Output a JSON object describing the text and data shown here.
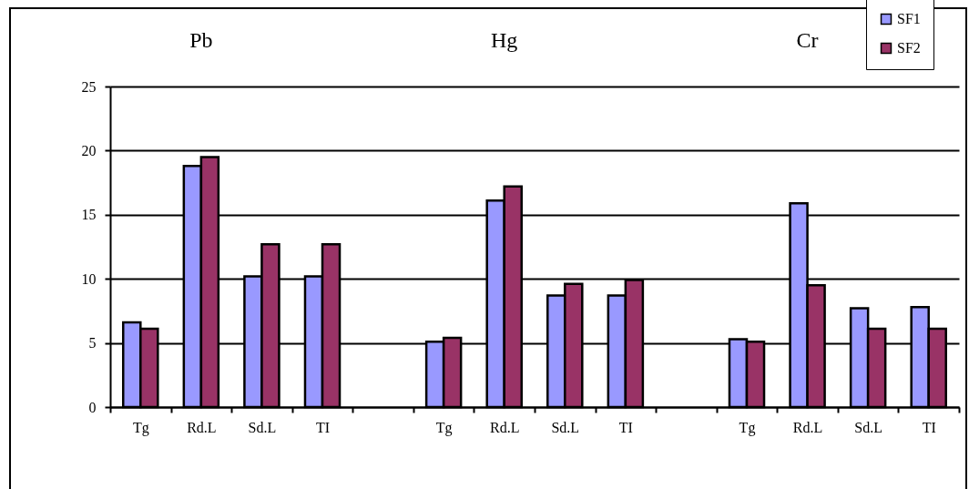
{
  "chart_data": {
    "type": "bar",
    "categories": [
      "Tg",
      "Rd.L",
      "Sd.L",
      "TI",
      null,
      "Tg",
      "Rd.L",
      "Sd.L",
      "TI",
      null,
      "Tg",
      "Rd.L",
      "Sd.L",
      "TI"
    ],
    "series": [
      {
        "name": "SF1",
        "color": "#9999ff",
        "values": [
          6.6,
          18.8,
          10.2,
          10.2,
          null,
          5.1,
          16.1,
          8.7,
          8.7,
          null,
          5.3,
          15.9,
          7.7,
          7.8
        ]
      },
      {
        "name": "SF2",
        "color": "#993366",
        "values": [
          6.1,
          19.5,
          12.7,
          12.7,
          null,
          5.4,
          17.2,
          9.6,
          9.9,
          null,
          5.1,
          9.5,
          6.1,
          6.1
        ]
      }
    ],
    "ylim": [
      0,
      25
    ],
    "yticks": [
      0,
      5,
      10,
      15,
      20,
      25
    ],
    "grid": "y",
    "legend": "top right",
    "annotations": [
      "Pb",
      "Hg",
      "Cr"
    ]
  }
}
